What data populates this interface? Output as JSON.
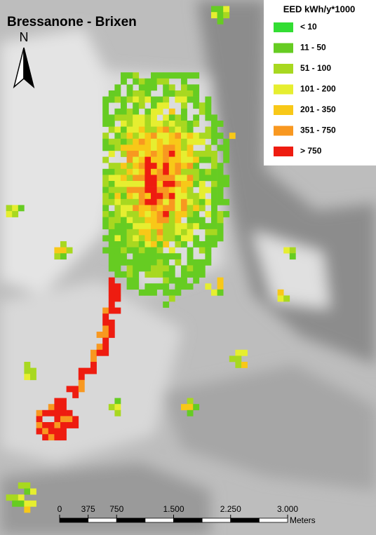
{
  "map": {
    "title": "Bressanone - Brixen",
    "north_label": "N",
    "legend": {
      "title": "EED kWh/y*1000",
      "items": [
        {
          "label": "< 10",
          "color": "#33dd33"
        },
        {
          "label": "11 - 50",
          "color": "#66cc22"
        },
        {
          "label": "51 - 100",
          "color": "#a8d820"
        },
        {
          "label": "101 - 200",
          "color": "#e6ee30"
        },
        {
          "label": "201 - 350",
          "color": "#f8c818"
        },
        {
          "label": "351 - 750",
          "color": "#f89820"
        },
        {
          "label": "> 750",
          "color": "#ee1c10"
        }
      ]
    },
    "scale_bar": {
      "ticks": [
        0,
        375,
        750,
        {
          "value": 1500,
          "label": "1.500"
        },
        {
          "value": 2250,
          "label": "2.250"
        },
        {
          "value": 3000,
          "label": "3.000"
        }
      ],
      "unit": "Meters"
    }
  }
}
